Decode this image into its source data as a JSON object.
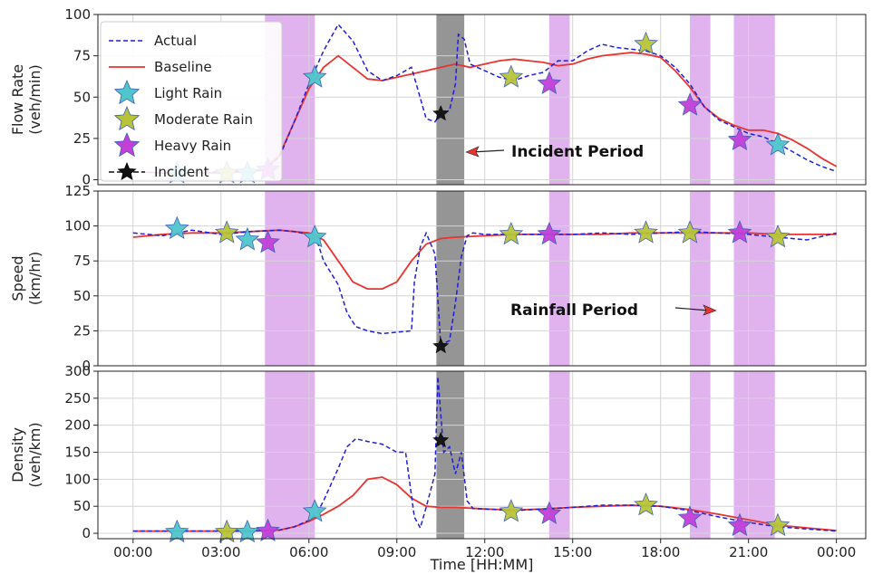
{
  "chart_data": {
    "type": "line",
    "xlabel": "Time [HH:MM]",
    "x_ticks": [
      "00:00",
      "03:00",
      "06:00",
      "09:00",
      "12:00",
      "15:00",
      "18:00",
      "21:00",
      "00:00"
    ],
    "x_tick_hours": [
      0,
      3,
      6,
      9,
      12,
      15,
      18,
      21,
      24
    ],
    "xlim_hours": [
      -1.2,
      25.0
    ],
    "shaded_rainfall_hours": [
      [
        4.5,
        6.2
      ],
      [
        14.2,
        14.9
      ],
      [
        19.0,
        19.7
      ],
      [
        20.5,
        21.9
      ]
    ],
    "shaded_incident_hours": [
      10.35,
      11.3
    ],
    "legend": {
      "placement": "upper-left",
      "entries": [
        {
          "label": "Actual",
          "style": "dashed",
          "color": "#1f1fd9"
        },
        {
          "label": "Baseline",
          "style": "solid",
          "color": "#e8332f"
        },
        {
          "label": "Light Rain",
          "marker": "star",
          "color": "#4fc6cc"
        },
        {
          "label": "Moderate Rain",
          "marker": "star",
          "color": "#b8c337"
        },
        {
          "label": "Heavy Rain",
          "marker": "star",
          "color": "#c240d8"
        },
        {
          "label": "Incident",
          "marker": "star",
          "color": "#111111"
        }
      ]
    },
    "annotations": [
      {
        "text": "Incident Period",
        "panel": 0
      },
      {
        "text": "Rainfall Period",
        "panel": 1
      }
    ],
    "colors": {
      "actual": "#1f1fd9",
      "baseline": "#e8332f",
      "light": "#4fc6cc",
      "moderate": "#b8c337",
      "heavy": "#c240d8",
      "incident": "#111111",
      "rain_band": "#dba6ec",
      "incident_band": "#8a8a8a"
    },
    "panels": [
      {
        "ylabel": [
          "Flow Rate",
          "(veh/min)"
        ],
        "ylim": [
          -3,
          100
        ],
        "yticks": [
          0,
          25,
          50,
          75,
          100
        ],
        "baseline": {
          "x": [
            0,
            1,
            2,
            3,
            4,
            4.5,
            5,
            5.5,
            6,
            6.5,
            7,
            7.5,
            8,
            8.5,
            9,
            9.5,
            10,
            10.5,
            11,
            11.5,
            12,
            12.5,
            13,
            13.5,
            14,
            14.5,
            15,
            15.5,
            16,
            16.5,
            17,
            17.5,
            18,
            18.5,
            19,
            19.5,
            20,
            20.5,
            21,
            21.5,
            22,
            22.5,
            23,
            23.5,
            24
          ],
          "y": [
            5,
            4,
            4,
            4,
            5,
            6,
            15,
            35,
            55,
            68,
            75,
            68,
            61,
            60,
            62,
            64,
            66,
            68,
            70,
            68,
            70,
            72,
            73,
            72,
            71,
            69,
            70,
            73,
            75,
            76,
            77,
            76,
            74,
            66,
            56,
            44,
            37,
            33,
            30,
            30,
            28,
            24,
            19,
            13,
            8
          ]
        },
        "actual": {
          "x": [
            0,
            1,
            2,
            3,
            4,
            4.5,
            5,
            5.5,
            6,
            6.5,
            7,
            7.5,
            8,
            8.5,
            9,
            9.5,
            10,
            10.3,
            10.5,
            10.8,
            11,
            11.1,
            11.3,
            11.5,
            12,
            12.5,
            13,
            13.5,
            14,
            14.5,
            15,
            15.5,
            16,
            16.5,
            17,
            17.5,
            18,
            18.5,
            19,
            19.5,
            20,
            20.5,
            21,
            21.5,
            22,
            22.5,
            23,
            23.5,
            24
          ],
          "y": [
            5,
            4,
            4,
            5,
            5,
            6,
            14,
            35,
            58,
            78,
            94,
            84,
            66,
            60,
            63,
            68,
            37,
            35,
            40,
            42,
            58,
            88,
            85,
            70,
            66,
            62,
            60,
            63,
            65,
            72,
            72,
            78,
            82,
            80,
            79,
            78,
            75,
            68,
            58,
            44,
            36,
            32,
            28,
            26,
            22,
            17,
            12,
            8,
            5
          ]
        },
        "markers": [
          {
            "type": "light",
            "x": 1.5,
            "y": 4
          },
          {
            "type": "moderate",
            "x": 3.2,
            "y": 4
          },
          {
            "type": "light",
            "x": 3.9,
            "y": 4
          },
          {
            "type": "heavy",
            "x": 4.6,
            "y": 6
          },
          {
            "type": "light",
            "x": 6.2,
            "y": 62
          },
          {
            "type": "incident",
            "x": 10.5,
            "y": 40
          },
          {
            "type": "moderate",
            "x": 12.9,
            "y": 62
          },
          {
            "type": "heavy",
            "x": 14.2,
            "y": 58
          },
          {
            "type": "moderate",
            "x": 17.5,
            "y": 82
          },
          {
            "type": "heavy",
            "x": 19.0,
            "y": 45
          },
          {
            "type": "heavy",
            "x": 20.7,
            "y": 24
          },
          {
            "type": "light",
            "x": 22.0,
            "y": 21
          }
        ]
      },
      {
        "ylabel": [
          "Speed",
          "(km/hr)"
        ],
        "ylim": [
          0,
          125
        ],
        "yticks": [
          0,
          25,
          50,
          75,
          100,
          125
        ],
        "baseline": {
          "x": [
            0,
            1,
            2,
            3,
            4,
            5,
            5.5,
            6,
            6.5,
            7,
            7.5,
            8,
            8.5,
            9,
            9.5,
            10,
            10.5,
            11,
            12,
            13,
            14,
            15,
            16,
            17,
            18,
            19,
            20,
            21,
            22,
            23,
            24
          ],
          "y": [
            92,
            94,
            95,
            95,
            96,
            97,
            96,
            95,
            90,
            75,
            60,
            55,
            55,
            60,
            75,
            87,
            91,
            92,
            93,
            94,
            94,
            94,
            94,
            95,
            95,
            95,
            95,
            95,
            94,
            94,
            94
          ]
        },
        "actual": {
          "x": [
            0,
            1,
            2,
            3,
            4,
            5,
            5.5,
            6,
            6.3,
            6.5,
            7,
            7.3,
            7.6,
            8,
            8.5,
            9,
            9.5,
            9.6,
            9.8,
            10,
            10.3,
            10.5,
            10.8,
            11,
            11.2,
            11.4,
            11.6,
            12,
            13,
            14,
            15,
            16,
            17,
            18,
            19,
            20,
            21,
            22,
            23,
            24
          ],
          "y": [
            95,
            93,
            97,
            94,
            96,
            97,
            96,
            94,
            88,
            75,
            58,
            38,
            28,
            25,
            23,
            24,
            25,
            60,
            85,
            95,
            80,
            15,
            18,
            45,
            78,
            93,
            95,
            94,
            94,
            94,
            94,
            95,
            94,
            95,
            96,
            95,
            94,
            92,
            90,
            95
          ]
        },
        "markers": [
          {
            "type": "light",
            "x": 1.5,
            "y": 98
          },
          {
            "type": "moderate",
            "x": 3.2,
            "y": 95
          },
          {
            "type": "light",
            "x": 3.9,
            "y": 90
          },
          {
            "type": "heavy",
            "x": 4.6,
            "y": 88
          },
          {
            "type": "light",
            "x": 6.2,
            "y": 92
          },
          {
            "type": "incident",
            "x": 10.5,
            "y": 14
          },
          {
            "type": "moderate",
            "x": 12.9,
            "y": 94
          },
          {
            "type": "heavy",
            "x": 14.2,
            "y": 94
          },
          {
            "type": "moderate",
            "x": 17.5,
            "y": 95
          },
          {
            "type": "moderate",
            "x": 19.0,
            "y": 95
          },
          {
            "type": "heavy",
            "x": 20.7,
            "y": 95
          },
          {
            "type": "moderate",
            "x": 22.0,
            "y": 92
          }
        ]
      },
      {
        "ylabel": [
          "Density",
          "(veh/km)"
        ],
        "ylim": [
          -10,
          300
        ],
        "yticks": [
          0,
          50,
          100,
          150,
          200,
          250,
          300
        ],
        "baseline": {
          "x": [
            0,
            1,
            2,
            3,
            4,
            5,
            5.5,
            6,
            6.5,
            7,
            7.5,
            8,
            8.5,
            9,
            9.5,
            10,
            10.5,
            11,
            12,
            13,
            14,
            15,
            16,
            17,
            18,
            19,
            20,
            21,
            22,
            23,
            24
          ],
          "y": [
            4,
            4,
            4,
            4,
            4,
            6,
            12,
            22,
            35,
            50,
            70,
            100,
            104,
            90,
            65,
            50,
            48,
            48,
            45,
            43,
            45,
            48,
            50,
            52,
            50,
            44,
            35,
            25,
            15,
            10,
            5
          ]
        },
        "actual": {
          "x": [
            0,
            1,
            2,
            3,
            4,
            5,
            5.5,
            6,
            6.3,
            6.5,
            7,
            7.3,
            7.6,
            8,
            8.5,
            9,
            9.3,
            9.6,
            9.8,
            10,
            10.3,
            10.4,
            10.6,
            10.8,
            11,
            11.2,
            11.4,
            11.6,
            12,
            13,
            14,
            15,
            16,
            17,
            18,
            19,
            20,
            21,
            22,
            23,
            24
          ],
          "y": [
            4,
            4,
            4,
            4,
            4,
            6,
            12,
            24,
            40,
            60,
            120,
            160,
            175,
            170,
            165,
            150,
            150,
            30,
            10,
            48,
            110,
            290,
            150,
            160,
            110,
            150,
            60,
            46,
            45,
            42,
            45,
            48,
            52,
            52,
            50,
            42,
            30,
            20,
            12,
            8,
            4
          ]
        },
        "markers": [
          {
            "type": "light",
            "x": 1.5,
            "y": 2
          },
          {
            "type": "moderate",
            "x": 3.2,
            "y": 2
          },
          {
            "type": "light",
            "x": 3.9,
            "y": 2
          },
          {
            "type": "heavy",
            "x": 4.6,
            "y": 4
          },
          {
            "type": "light",
            "x": 6.2,
            "y": 40
          },
          {
            "type": "incident",
            "x": 10.5,
            "y": 172
          },
          {
            "type": "moderate",
            "x": 12.9,
            "y": 40
          },
          {
            "type": "heavy",
            "x": 14.2,
            "y": 36
          },
          {
            "type": "moderate",
            "x": 17.5,
            "y": 52
          },
          {
            "type": "heavy",
            "x": 19.0,
            "y": 28
          },
          {
            "type": "heavy",
            "x": 20.7,
            "y": 14
          },
          {
            "type": "moderate",
            "x": 22.0,
            "y": 14
          }
        ]
      }
    ]
  }
}
